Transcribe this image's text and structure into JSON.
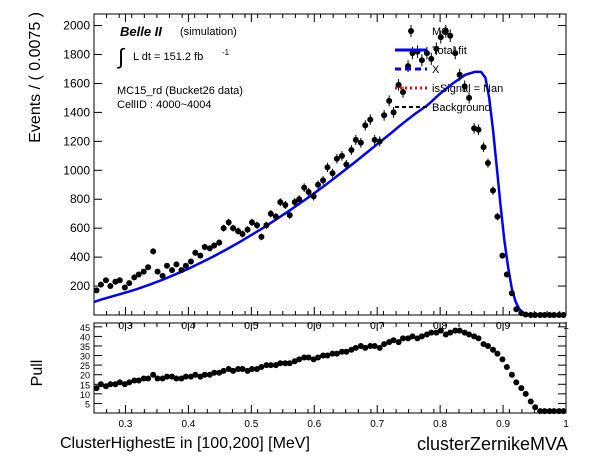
{
  "chart_data": [
    {
      "type": "scatter",
      "panel": "main",
      "ylabel": "Events / ( 0.0075 )",
      "xlim": [
        0.25,
        1.0
      ],
      "ylim": [
        0,
        2080
      ],
      "x_ticks": [
        "0.3",
        "0.4",
        "0.5",
        "0.6",
        "0.7",
        "0.8",
        "0.9",
        "1"
      ],
      "x_tick_values": [
        0.3,
        0.4,
        0.5,
        0.6,
        0.7,
        0.8,
        0.9,
        1.0
      ],
      "y_ticks": [
        "200",
        "400",
        "600",
        "800",
        "1000",
        "1200",
        "1400",
        "1600",
        "1800",
        "2000"
      ],
      "y_tick_values": [
        200,
        400,
        600,
        800,
        1000,
        1200,
        1400,
        1600,
        1800,
        2000
      ],
      "annotations": {
        "experiment": "Belle II",
        "simulation": "(simulation)",
        "lumi_integral": "∫",
        "lumi_text": "L dt = 151.2 fb",
        "lumi_sup": "-1",
        "sample": "MC15_rd (Bucket26 data)",
        "cell": "CellID : 4000~4004"
      },
      "legend": {
        "placement": "top-right",
        "entries": [
          {
            "label": "MC",
            "style": "marker",
            "color": "#000000"
          },
          {
            "label": "Total fit",
            "style": "solid",
            "color": "#0000ff"
          },
          {
            "label": "X",
            "style": "dashed",
            "color": "#0000ff"
          },
          {
            "label": "isSignal = Nan",
            "style": "dotted",
            "color": "#ff0000"
          },
          {
            "label": "Background",
            "style": "dashed",
            "color": "#000000"
          }
        ]
      },
      "series": [
        {
          "name": "MC",
          "style": "points",
          "color": "#000000",
          "x": [
            0.254,
            0.261,
            0.269,
            0.276,
            0.284,
            0.291,
            0.299,
            0.306,
            0.314,
            0.321,
            0.329,
            0.336,
            0.344,
            0.351,
            0.359,
            0.366,
            0.374,
            0.381,
            0.389,
            0.396,
            0.404,
            0.411,
            0.419,
            0.426,
            0.434,
            0.441,
            0.449,
            0.456,
            0.464,
            0.471,
            0.479,
            0.486,
            0.494,
            0.501,
            0.509,
            0.516,
            0.524,
            0.531,
            0.539,
            0.546,
            0.554,
            0.561,
            0.569,
            0.576,
            0.584,
            0.591,
            0.599,
            0.606,
            0.614,
            0.621,
            0.629,
            0.636,
            0.644,
            0.651,
            0.659,
            0.666,
            0.674,
            0.681,
            0.689,
            0.696,
            0.704,
            0.711,
            0.719,
            0.726,
            0.734,
            0.741,
            0.749,
            0.756,
            0.764,
            0.771,
            0.779,
            0.786,
            0.794,
            0.801,
            0.809,
            0.816,
            0.824,
            0.831,
            0.839,
            0.846,
            0.854,
            0.861,
            0.869,
            0.876,
            0.884,
            0.891,
            0.899,
            0.906,
            0.914,
            0.921,
            0.929,
            0.936,
            0.944,
            0.951,
            0.959,
            0.966,
            0.974,
            0.981,
            0.989,
            0.996
          ],
          "y": [
            170,
            210,
            240,
            200,
            230,
            240,
            190,
            220,
            260,
            280,
            300,
            330,
            440,
            300,
            270,
            340,
            310,
            350,
            310,
            340,
            370,
            430,
            410,
            470,
            460,
            480,
            500,
            600,
            640,
            600,
            580,
            560,
            590,
            640,
            620,
            540,
            620,
            700,
            680,
            780,
            760,
            690,
            780,
            800,
            880,
            850,
            820,
            900,
            930,
            1020,
            980,
            1080,
            1100,
            1040,
            1140,
            1210,
            1190,
            1310,
            1350,
            1210,
            1200,
            1380,
            1480,
            1400,
            1590,
            1540,
            1720,
            1810,
            1820,
            1760,
            1810,
            1770,
            1840,
            1920,
            1960,
            1930,
            1810,
            1660,
            1580,
            1500,
            1290,
            1280,
            1160,
            1050,
            860,
            680,
            410,
            280,
            150,
            40,
            12,
            3,
            0,
            0,
            0,
            0,
            0,
            0,
            0,
            0
          ],
          "err": [
            13,
            14,
            16,
            14,
            15,
            16,
            14,
            15,
            16,
            17,
            17,
            18,
            21,
            17,
            16,
            18,
            18,
            19,
            18,
            18,
            19,
            21,
            20,
            22,
            21,
            22,
            22,
            24,
            25,
            24,
            24,
            24,
            24,
            25,
            25,
            23,
            25,
            26,
            26,
            28,
            28,
            26,
            28,
            28,
            30,
            29,
            29,
            30,
            30,
            32,
            31,
            33,
            33,
            32,
            34,
            35,
            34,
            36,
            37,
            35,
            35,
            37,
            38,
            37,
            40,
            39,
            41,
            43,
            43,
            42,
            43,
            42,
            43,
            44,
            44,
            44,
            43,
            41,
            40,
            39,
            36,
            36,
            34,
            32,
            29,
            26,
            20,
            17,
            12,
            6,
            3,
            2,
            0,
            0,
            0,
            0,
            0,
            0,
            0,
            0
          ]
        },
        {
          "name": "Total fit",
          "style": "line",
          "color": "#0000ff",
          "x": [
            0.25,
            0.26,
            0.28,
            0.3,
            0.32,
            0.34,
            0.36,
            0.38,
            0.4,
            0.42,
            0.44,
            0.46,
            0.48,
            0.5,
            0.52,
            0.54,
            0.56,
            0.58,
            0.6,
            0.62,
            0.64,
            0.66,
            0.68,
            0.7,
            0.72,
            0.74,
            0.76,
            0.78,
            0.8,
            0.82,
            0.84,
            0.855,
            0.865,
            0.872,
            0.878,
            0.884,
            0.89,
            0.896,
            0.902,
            0.908,
            0.914,
            0.92,
            0.926,
            0.932,
            0.94,
            0.95,
            0.96,
            1.0
          ],
          "y": [
            90,
            105,
            130,
            155,
            182,
            212,
            245,
            282,
            320,
            362,
            405,
            452,
            500,
            552,
            605,
            662,
            720,
            780,
            842,
            906,
            972,
            1040,
            1110,
            1180,
            1250,
            1322,
            1390,
            1450,
            1530,
            1600,
            1660,
            1680,
            1680,
            1640,
            1500,
            1280,
            1020,
            760,
            520,
            330,
            180,
            90,
            40,
            15,
            5,
            1,
            0,
            0
          ]
        }
      ]
    },
    {
      "type": "scatter",
      "panel": "pull",
      "ylabel": "Pull",
      "xlim": [
        0.25,
        1.0
      ],
      "ylim": [
        0,
        47
      ],
      "x_ticks": [
        "0.3",
        "0.4",
        "0.5",
        "0.6",
        "0.7",
        "0.8",
        "0.9",
        "1"
      ],
      "x_tick_values": [
        0.3,
        0.4,
        0.5,
        0.6,
        0.7,
        0.8,
        0.9,
        1.0
      ],
      "y_ticks": [
        "5",
        "10",
        "15",
        "20",
        "25",
        "30",
        "35",
        "40",
        "45"
      ],
      "y_tick_values": [
        5,
        10,
        15,
        20,
        25,
        30,
        35,
        40,
        45
      ],
      "series": [
        {
          "name": "Pull",
          "style": "points",
          "color": "#000000",
          "x": [
            0.254,
            0.261,
            0.269,
            0.276,
            0.284,
            0.291,
            0.299,
            0.306,
            0.314,
            0.321,
            0.329,
            0.336,
            0.344,
            0.351,
            0.359,
            0.366,
            0.374,
            0.381,
            0.389,
            0.396,
            0.404,
            0.411,
            0.419,
            0.426,
            0.434,
            0.441,
            0.449,
            0.456,
            0.464,
            0.471,
            0.479,
            0.486,
            0.494,
            0.501,
            0.509,
            0.516,
            0.524,
            0.531,
            0.539,
            0.546,
            0.554,
            0.561,
            0.569,
            0.576,
            0.584,
            0.591,
            0.599,
            0.606,
            0.614,
            0.621,
            0.629,
            0.636,
            0.644,
            0.651,
            0.659,
            0.666,
            0.674,
            0.681,
            0.689,
            0.696,
            0.704,
            0.711,
            0.719,
            0.726,
            0.734,
            0.741,
            0.749,
            0.756,
            0.764,
            0.771,
            0.779,
            0.786,
            0.794,
            0.801,
            0.809,
            0.816,
            0.824,
            0.831,
            0.839,
            0.846,
            0.854,
            0.861,
            0.869,
            0.876,
            0.884,
            0.891,
            0.899,
            0.906,
            0.914,
            0.921,
            0.929,
            0.936,
            0.944,
            0.951,
            0.959,
            0.966,
            0.974,
            0.981,
            0.989,
            0.996
          ],
          "y": [
            13,
            15,
            14,
            15,
            15,
            16,
            15,
            16,
            17,
            17,
            18,
            18,
            20,
            18,
            18,
            19,
            19,
            18,
            18,
            19,
            19,
            20,
            19,
            20,
            20,
            21,
            21,
            22,
            23,
            22,
            23,
            23,
            22,
            23,
            23,
            24,
            25,
            25,
            25,
            26,
            26,
            26,
            27,
            28,
            29,
            29,
            28,
            29,
            30,
            30,
            31,
            31,
            32,
            32,
            33,
            34,
            35,
            34,
            35,
            35,
            34,
            36,
            37,
            38,
            37,
            39,
            39,
            40,
            39,
            40,
            41,
            42,
            42,
            43,
            41,
            42,
            43,
            43,
            42,
            41,
            40,
            39,
            36,
            35,
            33,
            31,
            28,
            24,
            20,
            16,
            13,
            10,
            6,
            3,
            1,
            1,
            1,
            1,
            1,
            1
          ]
        }
      ]
    }
  ],
  "x_axis_label": "ClusterHighestE in [100,200] [MeV]",
  "var_label": "clusterZernikeMVA"
}
